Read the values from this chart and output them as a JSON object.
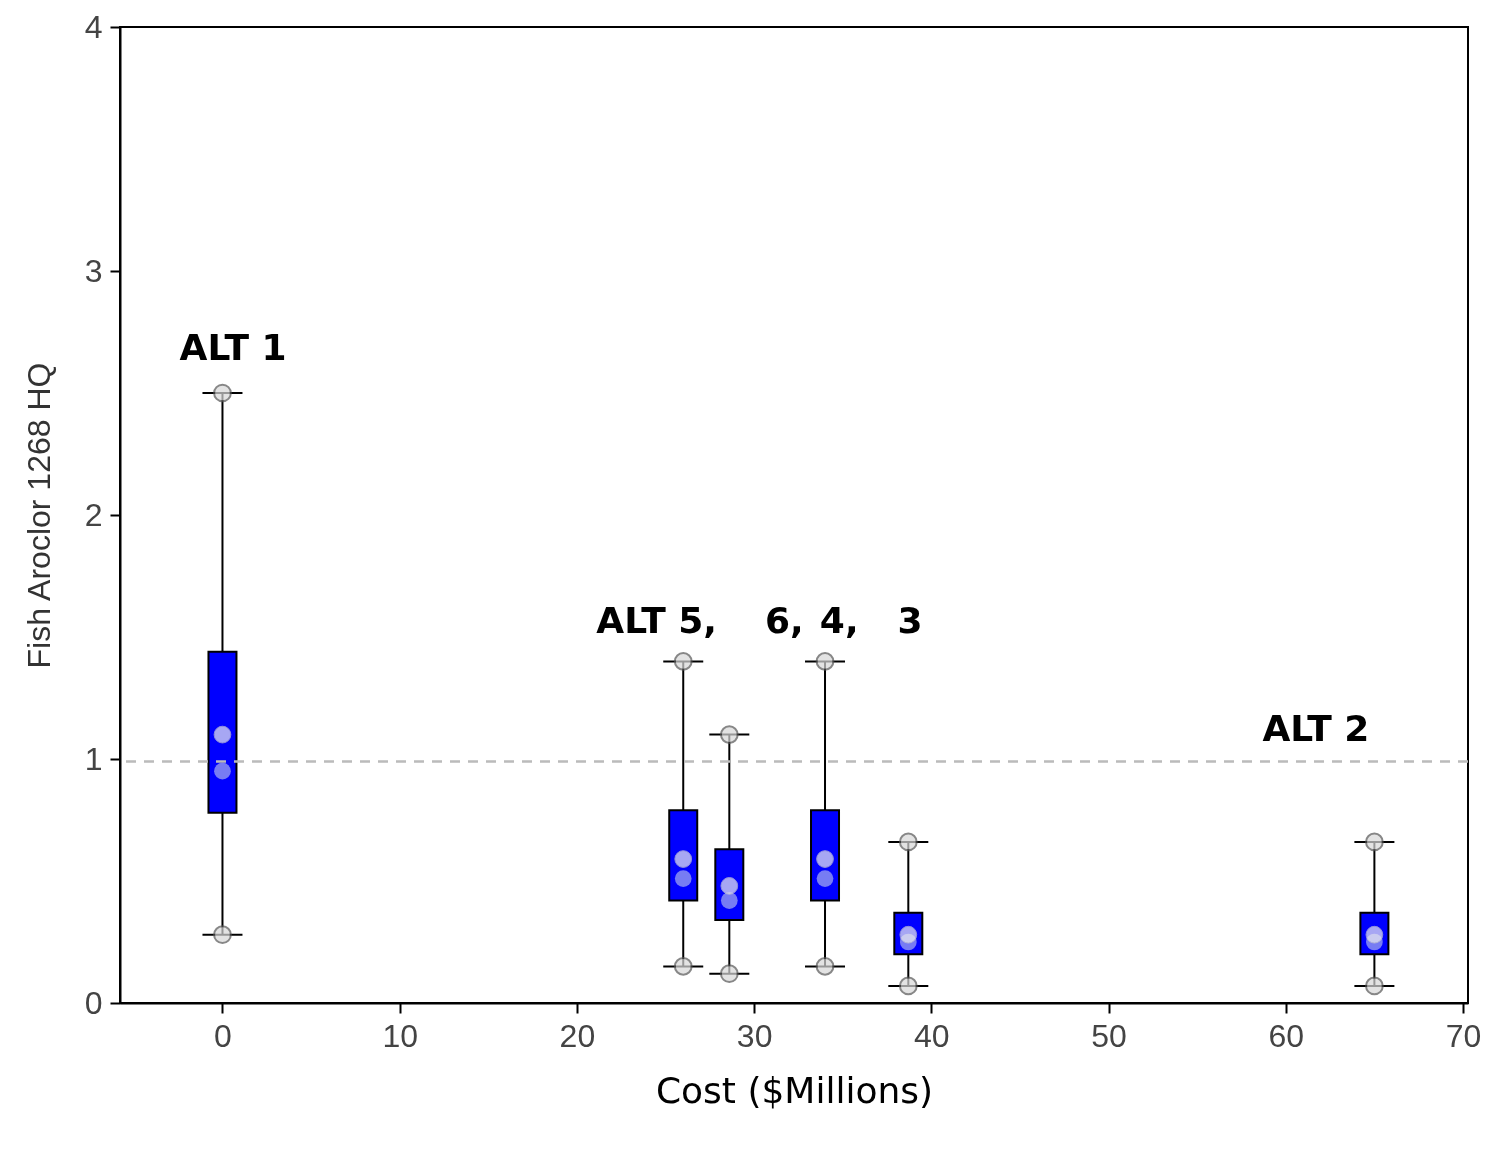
{
  "chart_data": {
    "type": "box",
    "xlabel": "Cost ($Millions)",
    "ylabel": "Fish Aroclor 1268 HQ",
    "x": [
      0,
      26,
      28.6,
      34,
      38.7,
      65
    ],
    "series": [
      {
        "color": "#0000ff",
        "boxes": [
          {
            "low": 0.28,
            "q1": 0.78,
            "median": 0.95,
            "q3": 1.44,
            "high": 2.5,
            "mean": 1.1,
            "outliers": [
              0.28,
              2.5
            ]
          },
          {
            "low": 0.15,
            "q1": 0.42,
            "median": 0.51,
            "q3": 0.79,
            "high": 1.4,
            "mean": 0.59,
            "outliers": [
              0.15,
              1.4
            ]
          },
          {
            "low": 0.12,
            "q1": 0.34,
            "median": 0.42,
            "q3": 0.63,
            "high": 1.1,
            "mean": 0.48,
            "outliers": [
              0.12,
              1.1
            ]
          },
          {
            "low": 0.15,
            "q1": 0.42,
            "median": 0.51,
            "q3": 0.79,
            "high": 1.4,
            "mean": 0.59,
            "outliers": [
              0.15,
              1.4
            ]
          },
          {
            "low": 0.07,
            "q1": 0.2,
            "median": 0.25,
            "q3": 0.37,
            "high": 0.66,
            "mean": 0.28,
            "outliers": [
              0.07,
              0.66
            ]
          },
          {
            "low": 0.07,
            "q1": 0.2,
            "median": 0.25,
            "q3": 0.37,
            "high": 0.66,
            "mean": 0.28,
            "outliers": [
              0.07,
              0.66
            ]
          }
        ]
      }
    ],
    "xlim": [
      -5.5,
      70
    ],
    "ylim": [
      0,
      4
    ],
    "xticks": [
      0,
      10,
      20,
      30,
      40,
      50,
      60,
      70
    ],
    "yticks": [
      0,
      1,
      2,
      3,
      4
    ],
    "marker": "circle",
    "ref_lines": [
      {
        "axis": "y",
        "value": 0.99,
        "color": "#bbbbbb",
        "line_style": "dashed"
      }
    ],
    "annotations": [
      "ALT 1",
      "ALT 5,",
      "6,",
      "4,",
      "3",
      "ALT 2"
    ]
  }
}
